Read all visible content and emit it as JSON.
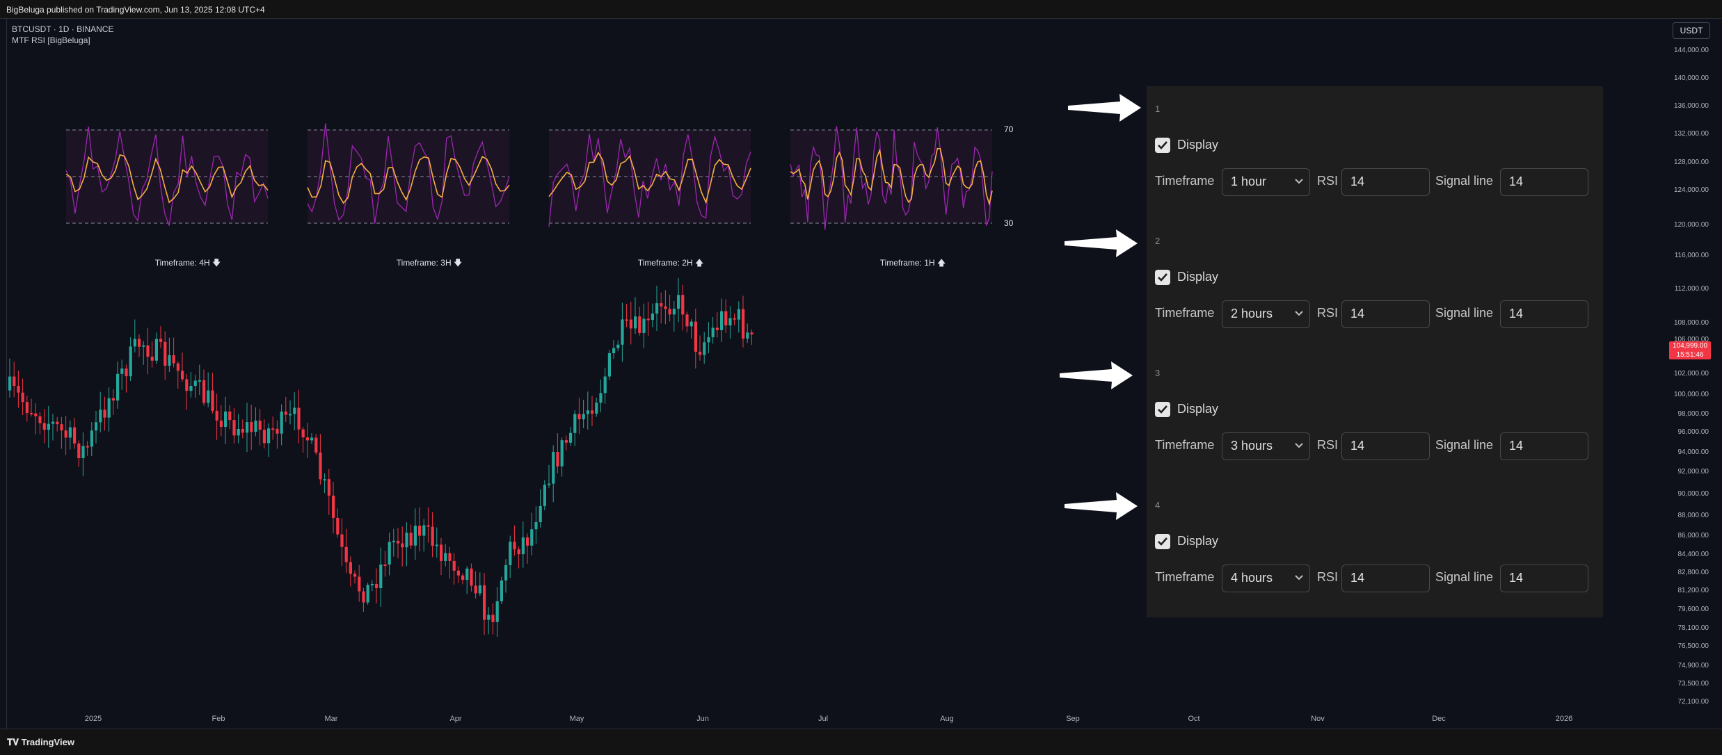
{
  "header": {
    "published": "BigBeluga published on TradingView.com, Jun 13, 2025 12:08 UTC+4"
  },
  "chart": {
    "symbol_line": "BTCUSDT · 1D · BINANCE",
    "indicator_line": "MTF RSI [BigBeluga]",
    "currency_button": "USDT",
    "last_price": "104,999.00",
    "countdown": "15:51:46"
  },
  "price_axis": [
    "144,000.00",
    "140,000.00",
    "136,000.00",
    "132,000.00",
    "128,000.00",
    "124,000.00",
    "120,000.00",
    "116,000.00",
    "112,000.00",
    "108,000.00",
    "106,000.00",
    "102,000.00",
    "100,000.00",
    "98,000.00",
    "96,000.00",
    "94,000.00",
    "92,000.00",
    "90,000.00",
    "88,000.00",
    "86,000.00",
    "84,400.00",
    "82,800.00",
    "81,200.00",
    "79,600.00",
    "78,100.00",
    "76,500.00",
    "74,900.00",
    "73,500.00",
    "72,100.00"
  ],
  "time_axis": [
    "2025",
    "Feb",
    "Mar",
    "Apr",
    "May",
    "Jun",
    "Jul",
    "Aug",
    "Sep",
    "Oct",
    "Nov",
    "Dec",
    "2026"
  ],
  "rsi_levels": {
    "upper": "70",
    "lower": "30"
  },
  "rsi_panels": [
    {
      "label": "Timeframe: 4H",
      "direction": "down"
    },
    {
      "label": "Timeframe: 3H",
      "direction": "down"
    },
    {
      "label": "Timeframe: 2H",
      "direction": "up"
    },
    {
      "label": "Timeframe: 1H",
      "direction": "up"
    }
  ],
  "settings": {
    "groups": [
      {
        "number": "1",
        "display_label": "Display",
        "display_checked": true,
        "timeframe_label": "Timeframe",
        "timeframe_value": "1 hour",
        "rsi_label": "RSI",
        "rsi_value": "14",
        "signal_label": "Signal line",
        "signal_value": "14"
      },
      {
        "number": "2",
        "display_label": "Display",
        "display_checked": true,
        "timeframe_label": "Timeframe",
        "timeframe_value": "2 hours",
        "rsi_label": "RSI",
        "rsi_value": "14",
        "signal_label": "Signal line",
        "signal_value": "14"
      },
      {
        "number": "3",
        "display_label": "Display",
        "display_checked": true,
        "timeframe_label": "Timeframe",
        "timeframe_value": "3 hours",
        "rsi_label": "RSI",
        "rsi_value": "14",
        "signal_label": "Signal line",
        "signal_value": "14"
      },
      {
        "number": "4",
        "display_label": "Display",
        "display_checked": true,
        "timeframe_label": "Timeframe",
        "timeframe_value": "4 hours",
        "rsi_label": "RSI",
        "rsi_value": "14",
        "signal_label": "Signal line",
        "signal_value": "14"
      }
    ]
  },
  "footer": {
    "brand": "TradingView"
  },
  "colors": {
    "bull": "#26a69a",
    "bear": "#f23645",
    "rsi": "#9c27b0",
    "signal": "#f5b041",
    "panel_bg": "#1e1e1e"
  }
}
